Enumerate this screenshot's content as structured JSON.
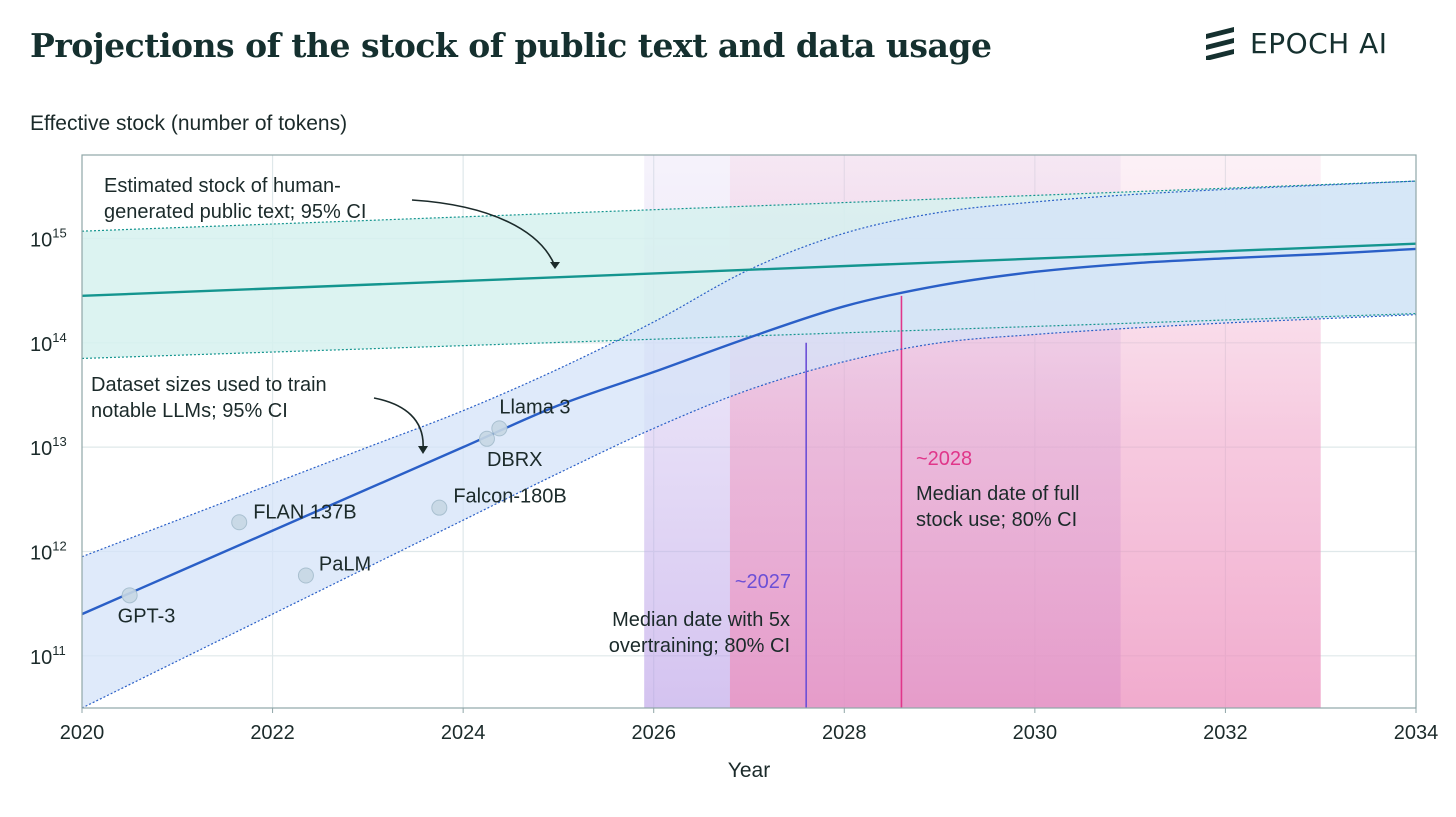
{
  "title": "Projections of the stock of public text and data usage",
  "brand": {
    "name": "EPOCH AI",
    "icon": "epoch-logo-icon"
  },
  "chart_data": {
    "type": "line",
    "title": "Projections of the stock of public text and data usage",
    "xlabel": "Year",
    "ylabel": "Effective stock (number of tokens)",
    "xlim": [
      2020,
      2034
    ],
    "ylim_log10": [
      10.5,
      15.8
    ],
    "yscale": "log",
    "x_ticks": [
      2020,
      2022,
      2024,
      2026,
      2028,
      2030,
      2032,
      2034
    ],
    "x_tick_labels": [
      "2020",
      "2022",
      "2024",
      "2026",
      "2028",
      "2030",
      "2032",
      "2034"
    ],
    "y_ticks_log10": [
      11,
      12,
      13,
      14,
      15
    ],
    "y_tick_labels": [
      {
        "base": "10",
        "exp": "11"
      },
      {
        "base": "10",
        "exp": "12"
      },
      {
        "base": "10",
        "exp": "13"
      },
      {
        "base": "10",
        "exp": "14"
      },
      {
        "base": "10",
        "exp": "15"
      }
    ],
    "stock": {
      "name": "Estimated stock of human-generated public text; 95% CI",
      "x": [
        2020,
        2034
      ],
      "median_log10": [
        14.45,
        14.95
      ],
      "lower_log10": [
        13.85,
        14.28
      ],
      "upper_log10": [
        15.07,
        15.55
      ],
      "color": "#14958f",
      "fill": "#d6f1ef"
    },
    "dataset": {
      "name": "Dataset sizes used to train notable LLMs; 95% CI",
      "x": [
        2020,
        2021,
        2022,
        2023,
        2024,
        2025,
        2026,
        2027,
        2028,
        2029,
        2030,
        2031,
        2032,
        2033,
        2034
      ],
      "median_log10": [
        11.4,
        11.8,
        12.2,
        12.6,
        13.0,
        13.4,
        13.72,
        14.05,
        14.35,
        14.55,
        14.68,
        14.76,
        14.81,
        14.85,
        14.9
      ],
      "lower_log10": [
        10.5,
        10.95,
        11.4,
        11.85,
        12.3,
        12.75,
        13.18,
        13.55,
        13.82,
        14.0,
        14.08,
        14.14,
        14.19,
        14.23,
        14.27
      ],
      "upper_log10": [
        11.95,
        12.3,
        12.65,
        13.0,
        13.35,
        13.75,
        14.2,
        14.7,
        15.05,
        15.25,
        15.35,
        15.42,
        15.47,
        15.51,
        15.55
      ],
      "color": "#2a5fc7",
      "fill": "#d4e3f8"
    },
    "models": [
      {
        "name": "GPT-3",
        "x": 2020.5,
        "y_log10": 11.58
      },
      {
        "name": "FLAN 137B",
        "x": 2021.65,
        "y_log10": 12.28
      },
      {
        "name": "PaLM",
        "x": 2022.35,
        "y_log10": 11.77
      },
      {
        "name": "Falcon-180B",
        "x": 2023.75,
        "y_log10": 12.42
      },
      {
        "name": "DBRX",
        "x": 2024.25,
        "y_log10": 13.08
      },
      {
        "name": "Llama 3",
        "x": 2024.38,
        "y_log10": 13.18
      }
    ],
    "full_use": {
      "median_x": 2028.6,
      "ci_80": [
        2026.8,
        2033.0
      ],
      "label_value": "~2028",
      "label_text": "Median date of full stock use; 80% CI",
      "color": "#e0368a"
    },
    "overtrain_5x": {
      "median_x": 2027.6,
      "ci_80": [
        2025.9,
        2030.9
      ],
      "label_value": "~2027",
      "label_text": "Median date with 5x overtraining; 80% CI",
      "color": "#6c4fd6"
    },
    "annotations": {
      "stock": [
        "Estimated stock of human-",
        "generated public text; 95% CI"
      ],
      "dataset": [
        "Dataset sizes used to train",
        "notable LLMs; 95% CI"
      ],
      "full_use": [
        "Median date of full",
        "stock use; 80% CI"
      ],
      "overtrain": [
        "Median date with 5x",
        "overtraining; 80% CI"
      ]
    }
  }
}
